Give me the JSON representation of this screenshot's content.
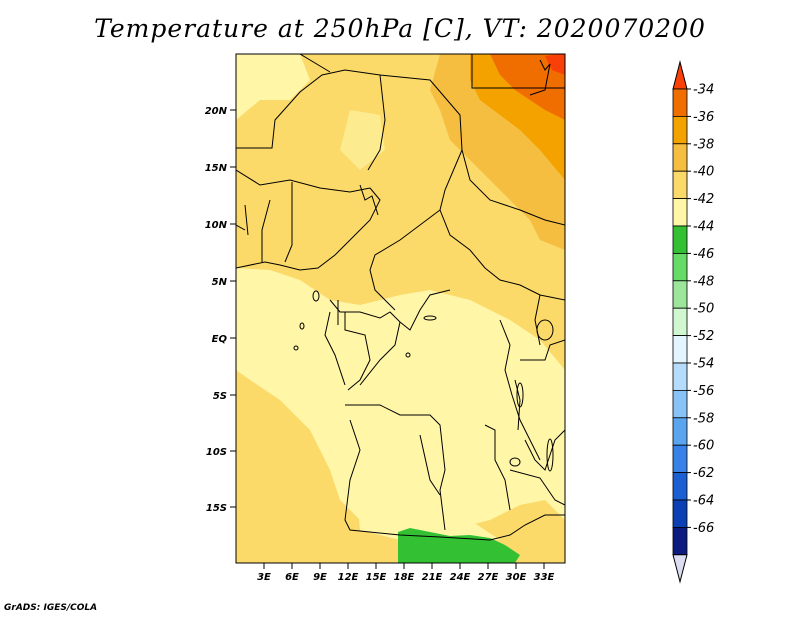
{
  "title": "Temperature at 250hPa [C], VT: 2020070200",
  "credit": "GrADS: IGES/COLA",
  "lat_ticks": [
    "20N",
    "15N",
    "10N",
    "5N",
    "EQ",
    "5S",
    "10S",
    "15S"
  ],
  "lon_ticks": [
    "3E",
    "6E",
    "9E",
    "12E",
    "15E",
    "18E",
    "21E",
    "24E",
    "27E",
    "30E",
    "33E"
  ],
  "legend": {
    "labels": [
      "-34",
      "-36",
      "-38",
      "-40",
      "-42",
      "-44",
      "-46",
      "-48",
      "-50",
      "-52",
      "-54",
      "-56",
      "-58",
      "-60",
      "-62",
      "-64",
      "-66"
    ],
    "colors": [
      "#f84008",
      "#f06e00",
      "#f3a200",
      "#f6be40",
      "#fbda6a",
      "#fff6a8",
      "#33c133",
      "#66db66",
      "#9be69b",
      "#d0f7d0",
      "#e3f6ff",
      "#b5dcfb",
      "#88c3f7",
      "#5aa5ee",
      "#3881e8",
      "#1c5fd3",
      "#0b40b4",
      "#0d1a80",
      "#dcdcf2"
    ]
  },
  "map_colors": {
    "c44": "#fff6a8",
    "c42": "#fbda6a",
    "c40": "#f6be40",
    "c38": "#f3a200",
    "c36": "#f06e00",
    "green": "#33c133"
  }
}
